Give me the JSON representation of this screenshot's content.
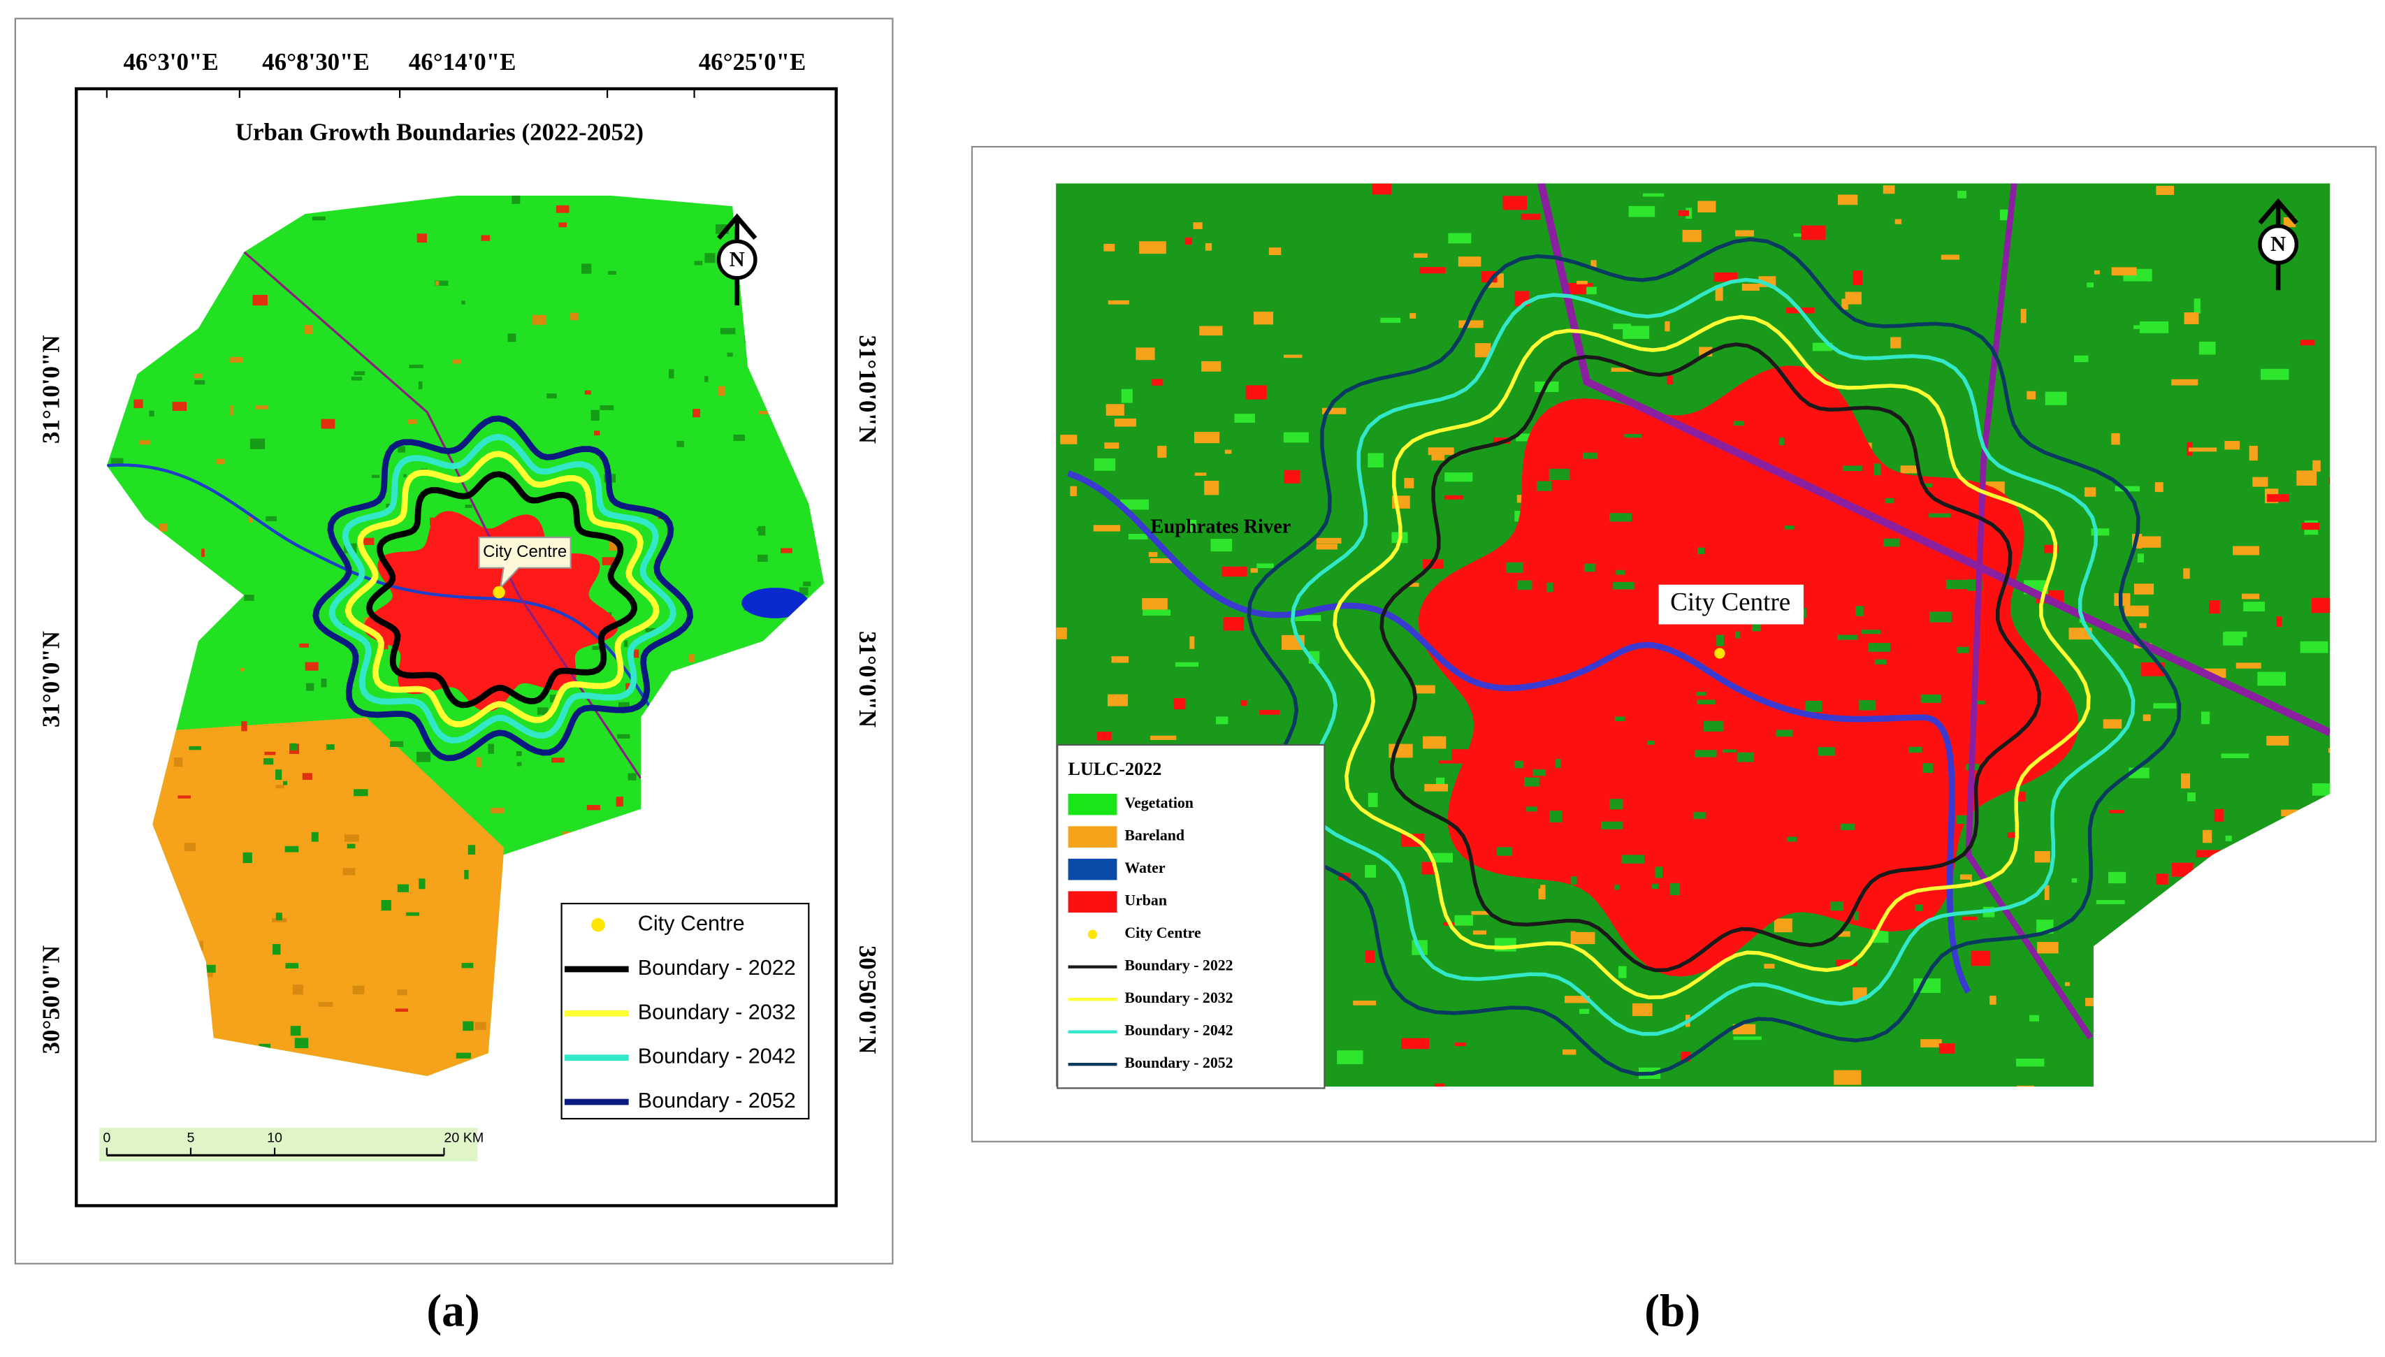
{
  "panel_a": {
    "label": "(a)",
    "title": "Urban Growth Boundaries  (2022-2052)",
    "longitude_labels": [
      "46°3'0\"E",
      "46°8'30\"E",
      "46°14'0\"E",
      "46°25'0\"E"
    ],
    "latitude_labels": [
      "31°10'0\"N",
      "31°0'0\"N",
      "30°50'0\"N"
    ],
    "north": "N",
    "city_centre_label": "City Centre",
    "legend": [
      {
        "label": "City Centre",
        "color": "#ffe600"
      },
      {
        "label": "Boundary - 2022",
        "color": "#000000"
      },
      {
        "label": "Boundary - 2032",
        "color": "#ffff33"
      },
      {
        "label": "Boundary - 2042",
        "color": "#33e8c8"
      },
      {
        "label": "Boundary - 2052",
        "color": "#0a1a80"
      }
    ],
    "scale_bar": [
      "0",
      "5",
      "10",
      "20 KM"
    ]
  },
  "panel_b": {
    "label": "(b)",
    "legend_title": "LULC-2022",
    "north": "N",
    "river_label": "Euphrates River",
    "city_centre_label": "City Centre",
    "legend": [
      {
        "label": "Vegetation",
        "color": "#19e619"
      },
      {
        "label": "Bareland",
        "color": "#f7a21b"
      },
      {
        "label": "Water",
        "color": "#0a4aa8"
      },
      {
        "label": "Urban",
        "color": "#ff1010"
      },
      {
        "label": "City Centre",
        "color": "#ffe600"
      },
      {
        "label": "Boundary - 2022",
        "color": "#1a1a1a"
      },
      {
        "label": "Boundary - 2032",
        "color": "#ffff33"
      },
      {
        "label": "Boundary - 2042",
        "color": "#33e8c8"
      },
      {
        "label": "Boundary - 2052",
        "color": "#0a3a60"
      }
    ]
  }
}
